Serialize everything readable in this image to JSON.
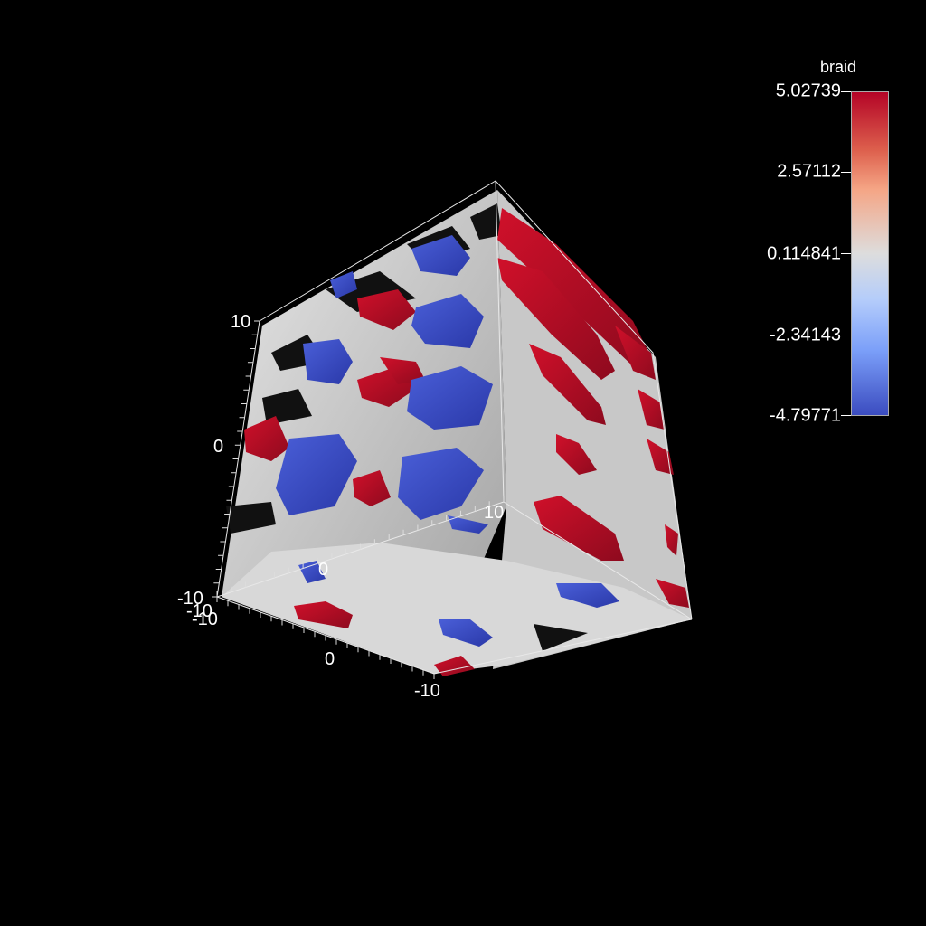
{
  "viewport": {
    "background_color": "#000000",
    "colors": {
      "positive": "#b40426",
      "negative": "#3b4cc0",
      "neutral": "#dddddd"
    }
  },
  "legend": {
    "title": "braid",
    "range": [
      -4.79771,
      5.02739
    ],
    "tick_labels": [
      "5.02739",
      "2.57112",
      "0.114841",
      "-2.34143",
      "-4.79771"
    ]
  },
  "axes": {
    "z_labels": [
      "10",
      "0",
      "-10"
    ],
    "x_labels": [
      "10",
      "0",
      "-10"
    ],
    "y_labels": [
      "-10",
      "0",
      "-10"
    ]
  }
}
